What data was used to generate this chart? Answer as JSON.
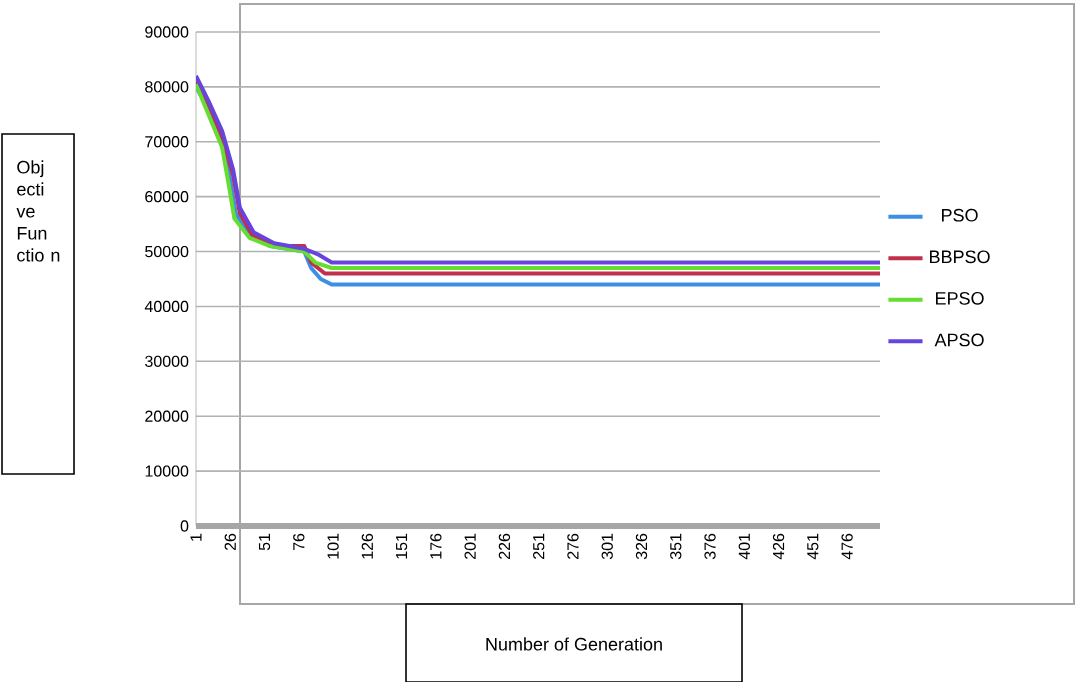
{
  "chart_data": {
    "type": "line",
    "xlabel": "Number of Generation",
    "ylabel": "Obj ecti ve Fun ctio n",
    "xlim": [
      1,
      500
    ],
    "ylim": [
      0,
      90000
    ],
    "xticks": [
      1,
      26,
      51,
      76,
      101,
      126,
      151,
      176,
      201,
      226,
      251,
      276,
      301,
      326,
      351,
      376,
      401,
      426,
      451,
      476
    ],
    "yticks": [
      0,
      10000,
      20000,
      30000,
      40000,
      50000,
      60000,
      70000,
      80000,
      90000
    ],
    "grid": "y",
    "legend": "right",
    "marker": "none",
    "line_style": "solid",
    "series": [
      {
        "name": "PSO",
        "color": "#3d8fe6",
        "x": [
          1,
          10,
          20,
          26,
          30,
          40,
          55,
          80,
          85,
          92,
          100,
          500
        ],
        "values": [
          80000,
          76000,
          70000,
          63000,
          57000,
          53000,
          51000,
          50000,
          47000,
          45000,
          44000,
          44000
        ]
      },
      {
        "name": "BBPSO",
        "color": "#c0304a",
        "x": [
          1,
          10,
          20,
          28,
          33,
          42,
          58,
          80,
          85,
          95,
          500
        ],
        "values": [
          81000,
          77000,
          71000,
          64000,
          57000,
          53000,
          51000,
          51000,
          48000,
          46000,
          46000
        ]
      },
      {
        "name": "EPSO",
        "color": "#66dd33",
        "x": [
          1,
          10,
          20,
          25,
          29,
          40,
          55,
          80,
          88,
          100,
          500
        ],
        "values": [
          80500,
          75000,
          69000,
          62000,
          56000,
          52500,
          51000,
          50000,
          48000,
          47000,
          47000
        ]
      },
      {
        "name": "APSO",
        "color": "#6644dd",
        "x": [
          1,
          10,
          20,
          28,
          33,
          43,
          58,
          80,
          90,
          100,
          500
        ],
        "values": [
          82000,
          77500,
          72000,
          65000,
          58000,
          53500,
          51500,
          50500,
          49500,
          48000,
          48000
        ]
      }
    ]
  }
}
